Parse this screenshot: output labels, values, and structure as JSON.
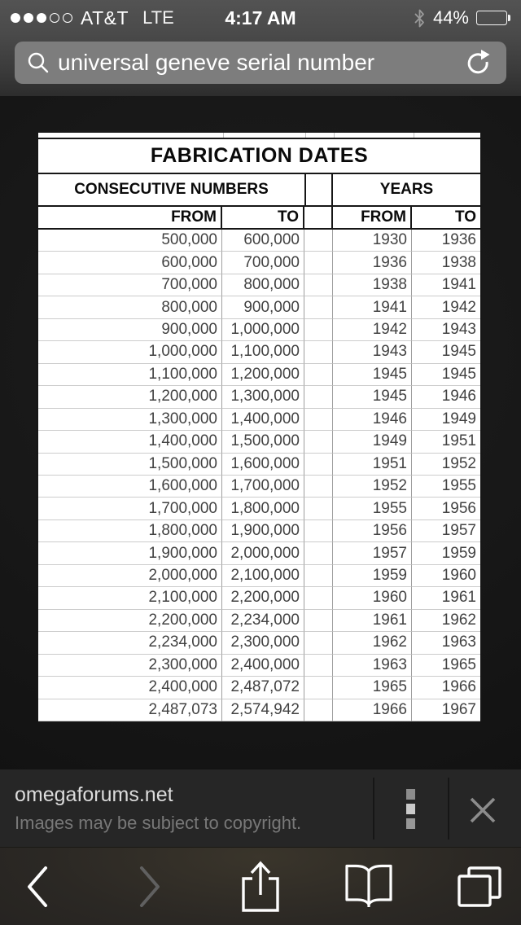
{
  "status_bar": {
    "carrier": "AT&T",
    "network": "LTE",
    "time": "4:17 AM",
    "battery": "44%",
    "signal": {
      "filled": 3,
      "total": 5
    }
  },
  "search_bar": {
    "query": "universal geneve serial number"
  },
  "image_viewer": {
    "table": {
      "title": "FABRICATION DATES",
      "groups": {
        "left": "CONSECUTIVE NUMBERS",
        "right": "YEARS"
      },
      "columns": [
        "FROM",
        "TO",
        "FROM",
        "TO"
      ],
      "rows": [
        [
          "500,000",
          "600,000",
          "1930",
          "1936"
        ],
        [
          "600,000",
          "700,000",
          "1936",
          "1938"
        ],
        [
          "700,000",
          "800,000",
          "1938",
          "1941"
        ],
        [
          "800,000",
          "900,000",
          "1941",
          "1942"
        ],
        [
          "900,000",
          "1,000,000",
          "1942",
          "1943"
        ],
        [
          "1,000,000",
          "1,100,000",
          "1943",
          "1945"
        ],
        [
          "1,100,000",
          "1,200,000",
          "1945",
          "1945"
        ],
        [
          "1,200,000",
          "1,300,000",
          "1945",
          "1946"
        ],
        [
          "1,300,000",
          "1,400,000",
          "1946",
          "1949"
        ],
        [
          "1,400,000",
          "1,500,000",
          "1949",
          "1951"
        ],
        [
          "1,500,000",
          "1,600,000",
          "1951",
          "1952"
        ],
        [
          "1,600,000",
          "1,700,000",
          "1952",
          "1955"
        ],
        [
          "1,700,000",
          "1,800,000",
          "1955",
          "1956"
        ],
        [
          "1,800,000",
          "1,900,000",
          "1956",
          "1957"
        ],
        [
          "1,900,000",
          "2,000,000",
          "1957",
          "1959"
        ],
        [
          "2,000,000",
          "2,100,000",
          "1959",
          "1960"
        ],
        [
          "2,100,000",
          "2,200,000",
          "1960",
          "1961"
        ],
        [
          "2,200,000",
          "2,234,000",
          "1961",
          "1962"
        ],
        [
          "2,234,000",
          "2,300,000",
          "1962",
          "1963"
        ],
        [
          "2,300,000",
          "2,400,000",
          "1963",
          "1965"
        ],
        [
          "2,400,000",
          "2,487,072",
          "1965",
          "1966"
        ],
        [
          "2,487,073",
          "2,574,942",
          "1966",
          "1967"
        ]
      ]
    }
  },
  "footer": {
    "source_link": "omegaforums.net",
    "copyright_note": "Images may be subject to copyright."
  },
  "icons": [
    "search-icon",
    "reload-icon",
    "bluetooth-icon",
    "battery-icon",
    "menu-dots-icon",
    "close-icon",
    "back-icon",
    "forward-icon",
    "share-icon",
    "bookmarks-icon",
    "tabs-icon"
  ],
  "colors": {
    "sheet_bg": "#ffffff",
    "table_text": "#424242",
    "header_text": "#0a0a0a",
    "footer_link": "#dcdcdc",
    "footer_note": "#787878",
    "search_field": "#7d7d7d"
  }
}
